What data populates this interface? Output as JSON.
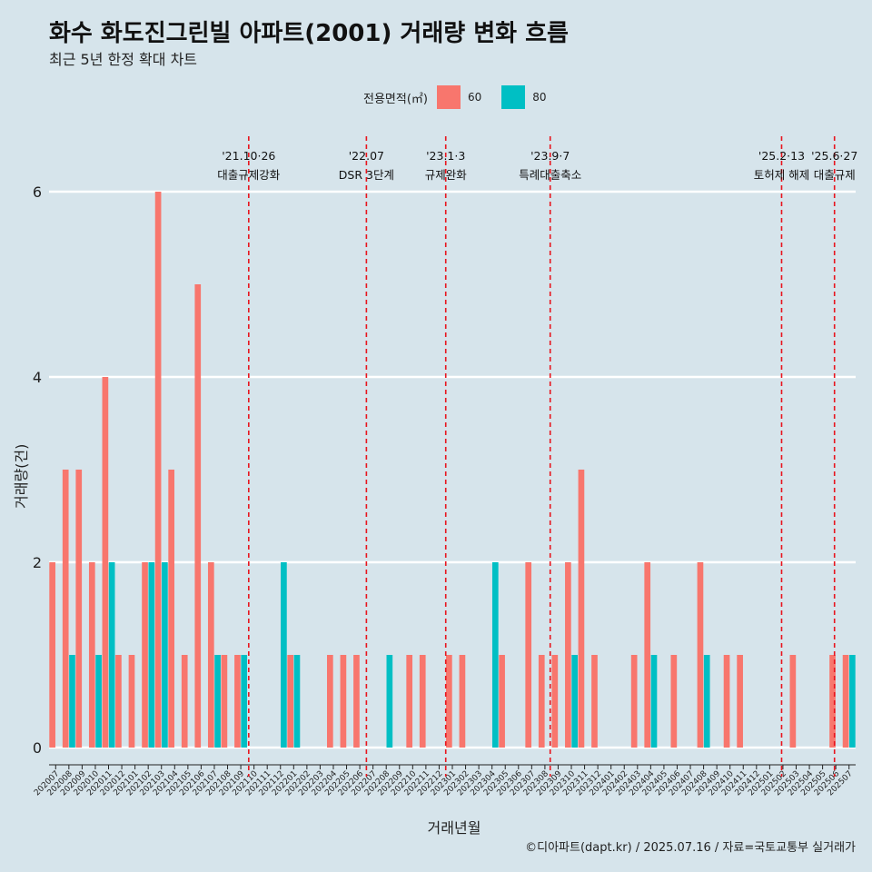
{
  "title": "화수 화도진그린빌 아파트(2001) 거래량 변화 흐름",
  "subtitle": "최근 5년 한정 확대 차트",
  "caption": "©디아파트(dapt.kr) / 2025.07.16 / 자료=국토교통부 실거래가",
  "legend": {
    "title": "전용면적(㎡)",
    "items": [
      {
        "label": "60",
        "color": "#f8766d"
      },
      {
        "label": "80",
        "color": "#00bfc4"
      }
    ]
  },
  "chart_data": {
    "type": "bar",
    "xlabel": "거래년월",
    "ylabel": "거래량(건)",
    "ylim": [
      0,
      6
    ],
    "yticks": [
      0,
      2,
      4,
      6
    ],
    "categories": [
      "202007",
      "202008",
      "202009",
      "202010",
      "202011",
      "202012",
      "202101",
      "202102",
      "202103",
      "202104",
      "202105",
      "202106",
      "202107",
      "202108",
      "202109",
      "202110",
      "202111",
      "202112",
      "202201",
      "202202",
      "202203",
      "202204",
      "202205",
      "202206",
      "202207",
      "202208",
      "202209",
      "202210",
      "202211",
      "202212",
      "202301",
      "202302",
      "202303",
      "202304",
      "202305",
      "202306",
      "202307",
      "202308",
      "202309",
      "202310",
      "202311",
      "202312",
      "202401",
      "202402",
      "202403",
      "202404",
      "202405",
      "202406",
      "202407",
      "202408",
      "202409",
      "202410",
      "202411",
      "202412",
      "202501",
      "202502",
      "202503",
      "202504",
      "202505",
      "202506",
      "202507"
    ],
    "series": [
      {
        "name": "60",
        "color": "#f8766d",
        "values": [
          2,
          3,
          3,
          2,
          4,
          1,
          1,
          2,
          6,
          3,
          1,
          5,
          2,
          1,
          1,
          0,
          0,
          0,
          1,
          0,
          0,
          1,
          1,
          1,
          0,
          0,
          0,
          1,
          1,
          0,
          1,
          1,
          0,
          0,
          1,
          0,
          2,
          1,
          1,
          2,
          3,
          1,
          0,
          0,
          1,
          2,
          0,
          1,
          0,
          2,
          0,
          1,
          1,
          0,
          0,
          0,
          1,
          0,
          0,
          1,
          1
        ]
      },
      {
        "name": "80",
        "color": "#00bfc4",
        "values": [
          0,
          1,
          0,
          1,
          2,
          0,
          0,
          2,
          2,
          0,
          0,
          0,
          1,
          0,
          1,
          0,
          0,
          2,
          1,
          0,
          0,
          0,
          0,
          0,
          0,
          1,
          0,
          0,
          0,
          0,
          0,
          0,
          0,
          2,
          0,
          0,
          0,
          0,
          0,
          1,
          0,
          0,
          0,
          0,
          0,
          1,
          0,
          0,
          0,
          1,
          0,
          0,
          0,
          0,
          0,
          0,
          0,
          0,
          0,
          0,
          1
        ]
      }
    ],
    "annotations": [
      {
        "date": "'21.10·26",
        "label": "대출규제강화",
        "x": 15.1
      },
      {
        "date": "'22.07",
        "label": "DSR 3단계",
        "x": 24.0
      },
      {
        "date": "'23.1·3",
        "label": "규제완화",
        "x": 30.0
      },
      {
        "date": "'23.9·7",
        "label": "특례대출축소",
        "x": 37.9
      },
      {
        "date": "'25.2·13",
        "label": "토허제 해제",
        "x": 55.4
      },
      {
        "date": "'25.6·27",
        "label": "대출규제",
        "x": 59.4
      }
    ],
    "grid": true,
    "legend_position": "top"
  }
}
